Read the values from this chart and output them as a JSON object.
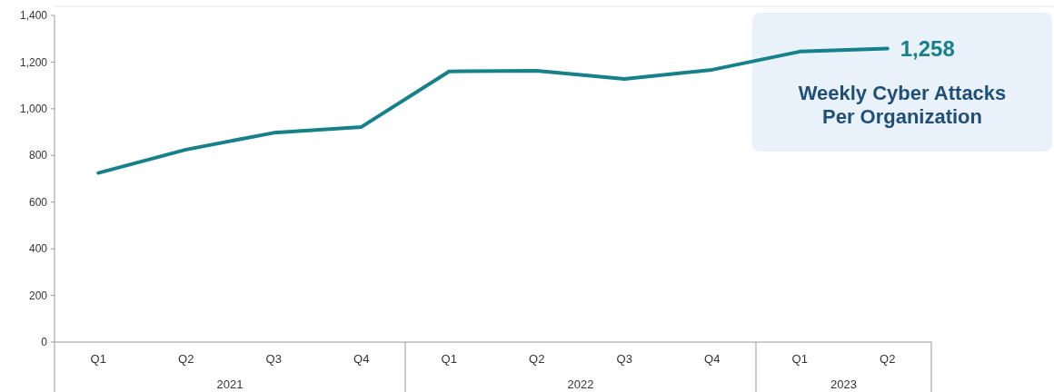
{
  "chart_data": {
    "type": "line",
    "title": "Weekly Cyber Attacks Per Organization",
    "categories": [
      "Q1",
      "Q2",
      "Q3",
      "Q4",
      "Q1",
      "Q2",
      "Q3",
      "Q4",
      "Q1",
      "Q2"
    ],
    "series": [
      {
        "color": "#16808b",
        "values": [
          725,
          825,
          897,
          922,
          1160,
          1163,
          1128,
          1167,
          1245,
          1258
        ]
      }
    ],
    "ylim": [
      0,
      1400
    ],
    "yticks": [
      0,
      200,
      400,
      600,
      800,
      {
        "value": 1000,
        "label": "1,000"
      },
      {
        "value": 1200,
        "label": "1,200"
      },
      {
        "value": 1400,
        "label": "1,400"
      }
    ],
    "annotations": [
      "2021",
      "2022",
      "2023",
      "1,258"
    ],
    "grid": false,
    "marker": "none",
    "line_style": "solid"
  }
}
